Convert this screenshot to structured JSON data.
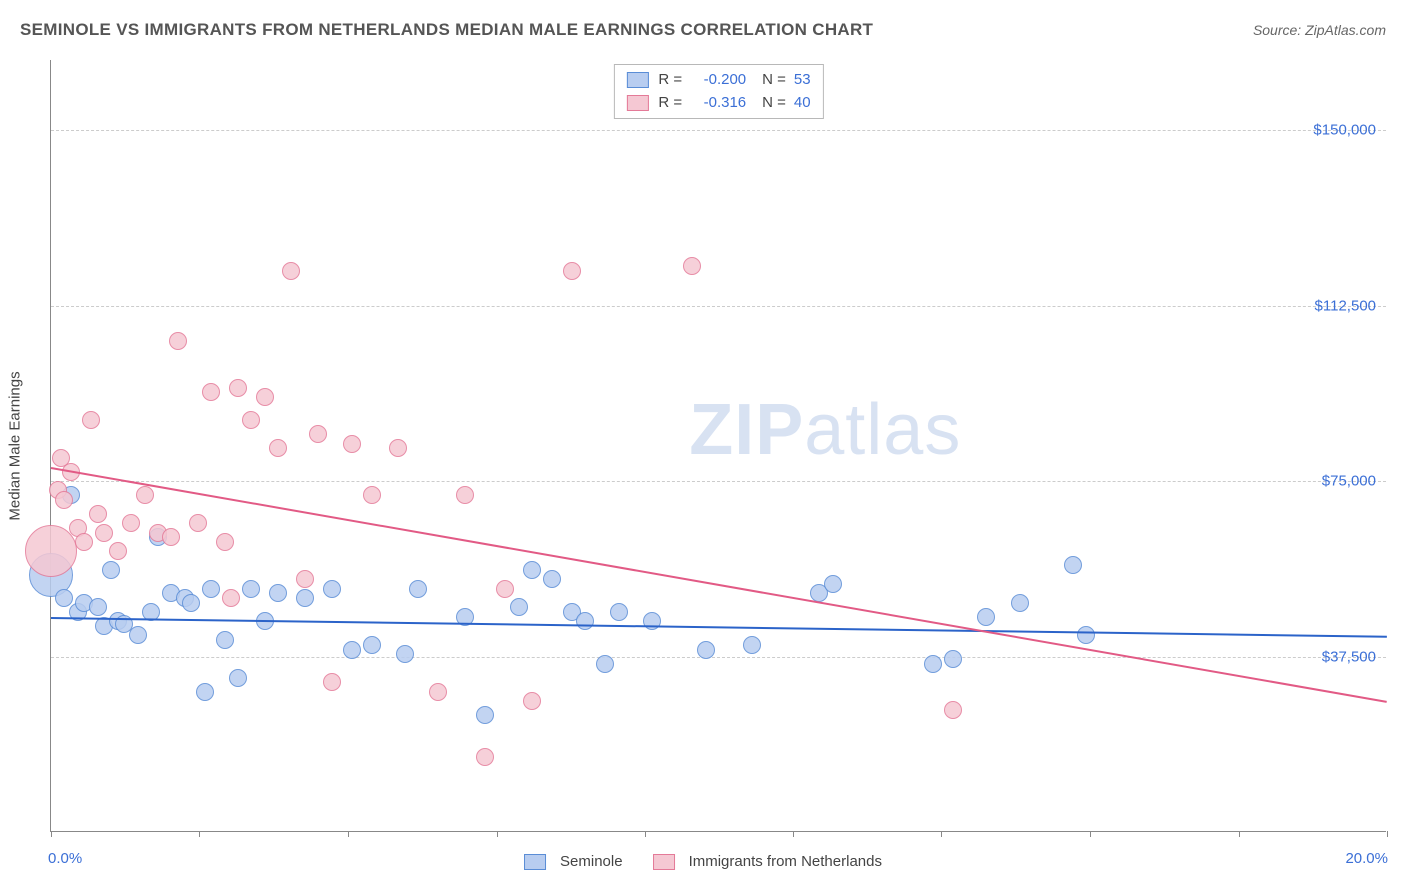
{
  "header": {
    "title": "SEMINOLE VS IMMIGRANTS FROM NETHERLANDS MEDIAN MALE EARNINGS CORRELATION CHART",
    "source": "Source: ZipAtlas.com"
  },
  "watermark": {
    "zip": "ZIP",
    "atlas": "atlas"
  },
  "chart": {
    "type": "scatter",
    "y_axis_label": "Median Male Earnings",
    "background_color": "#ffffff",
    "grid_color": "#cccccc",
    "axis_color": "#888888",
    "xlim": [
      0,
      20
    ],
    "ylim": [
      0,
      165000
    ],
    "x_range_labels": [
      "0.0%",
      "20.0%"
    ],
    "y_ticks": [
      {
        "value": 37500,
        "label": "$37,500"
      },
      {
        "value": 75000,
        "label": "$75,000"
      },
      {
        "value": 112500,
        "label": "$112,500"
      },
      {
        "value": 150000,
        "label": "$150,000"
      }
    ],
    "x_tick_positions": [
      0,
      2.22,
      4.44,
      6.67,
      8.89,
      11.11,
      13.33,
      15.56,
      17.78,
      20
    ],
    "marker_radius": 9,
    "series": [
      {
        "name": "Seminole",
        "color_fill": "#b8cdf0",
        "color_stroke": "#5a8dd6",
        "R": "-0.200",
        "N": "53",
        "trend": {
          "x1": 0,
          "y1": 46000,
          "x2": 20,
          "y2": 42000,
          "color": "#2b63c9",
          "width": 2
        },
        "points": [
          [
            0.0,
            55000,
            22
          ],
          [
            0.2,
            50000
          ],
          [
            0.3,
            72000
          ],
          [
            0.4,
            47000
          ],
          [
            0.5,
            49000
          ],
          [
            0.7,
            48000
          ],
          [
            0.8,
            44000
          ],
          [
            0.9,
            56000
          ],
          [
            1.0,
            45000
          ],
          [
            1.1,
            44500
          ],
          [
            1.3,
            42000
          ],
          [
            1.5,
            47000
          ],
          [
            1.6,
            63000
          ],
          [
            1.8,
            51000
          ],
          [
            2.0,
            50000
          ],
          [
            2.1,
            49000
          ],
          [
            2.3,
            30000
          ],
          [
            2.4,
            52000
          ],
          [
            2.6,
            41000
          ],
          [
            2.8,
            33000
          ],
          [
            3.0,
            52000
          ],
          [
            3.2,
            45000
          ],
          [
            3.4,
            51000
          ],
          [
            3.8,
            50000
          ],
          [
            4.2,
            52000
          ],
          [
            4.5,
            39000
          ],
          [
            4.8,
            40000
          ],
          [
            5.3,
            38000
          ],
          [
            5.5,
            52000
          ],
          [
            6.2,
            46000
          ],
          [
            6.5,
            25000
          ],
          [
            7.0,
            48000
          ],
          [
            7.2,
            56000
          ],
          [
            7.5,
            54000
          ],
          [
            7.8,
            47000
          ],
          [
            8.0,
            45000
          ],
          [
            8.3,
            36000
          ],
          [
            8.5,
            47000
          ],
          [
            9.0,
            45000
          ],
          [
            9.8,
            39000
          ],
          [
            10.5,
            40000
          ],
          [
            11.5,
            51000
          ],
          [
            11.7,
            53000
          ],
          [
            13.2,
            36000
          ],
          [
            13.5,
            37000
          ],
          [
            14.0,
            46000
          ],
          [
            14.5,
            49000
          ],
          [
            15.3,
            57000
          ],
          [
            15.5,
            42000
          ]
        ]
      },
      {
        "name": "Immigrants from Netherlands",
        "color_fill": "#f5c8d3",
        "color_stroke": "#e47a98",
        "R": "-0.316",
        "N": "40",
        "trend": {
          "x1": 0,
          "y1": 78000,
          "x2": 20,
          "y2": 28000,
          "color": "#e25a85",
          "width": 2
        },
        "points": [
          [
            0.0,
            60000,
            26
          ],
          [
            0.1,
            73000
          ],
          [
            0.15,
            80000
          ],
          [
            0.2,
            71000
          ],
          [
            0.3,
            77000
          ],
          [
            0.4,
            65000
          ],
          [
            0.5,
            62000
          ],
          [
            0.6,
            88000
          ],
          [
            0.7,
            68000
          ],
          [
            0.8,
            64000
          ],
          [
            1.0,
            60000
          ],
          [
            1.2,
            66000
          ],
          [
            1.4,
            72000
          ],
          [
            1.6,
            64000
          ],
          [
            1.8,
            63000
          ],
          [
            1.9,
            105000
          ],
          [
            2.2,
            66000
          ],
          [
            2.4,
            94000
          ],
          [
            2.6,
            62000
          ],
          [
            2.7,
            50000
          ],
          [
            2.8,
            95000
          ],
          [
            3.0,
            88000
          ],
          [
            3.2,
            93000
          ],
          [
            3.4,
            82000
          ],
          [
            3.6,
            120000
          ],
          [
            3.8,
            54000
          ],
          [
            4.0,
            85000
          ],
          [
            4.2,
            32000
          ],
          [
            4.5,
            83000
          ],
          [
            4.8,
            72000
          ],
          [
            5.2,
            82000
          ],
          [
            5.8,
            30000
          ],
          [
            6.2,
            72000
          ],
          [
            6.5,
            16000
          ],
          [
            6.8,
            52000
          ],
          [
            7.2,
            28000
          ],
          [
            7.8,
            120000
          ],
          [
            9.6,
            121000
          ],
          [
            13.5,
            26000
          ]
        ]
      }
    ],
    "legend_top": {
      "R_label": "R =",
      "N_label": "N =",
      "text_color": "#444444",
      "value_color": "#3b6fd6"
    }
  }
}
